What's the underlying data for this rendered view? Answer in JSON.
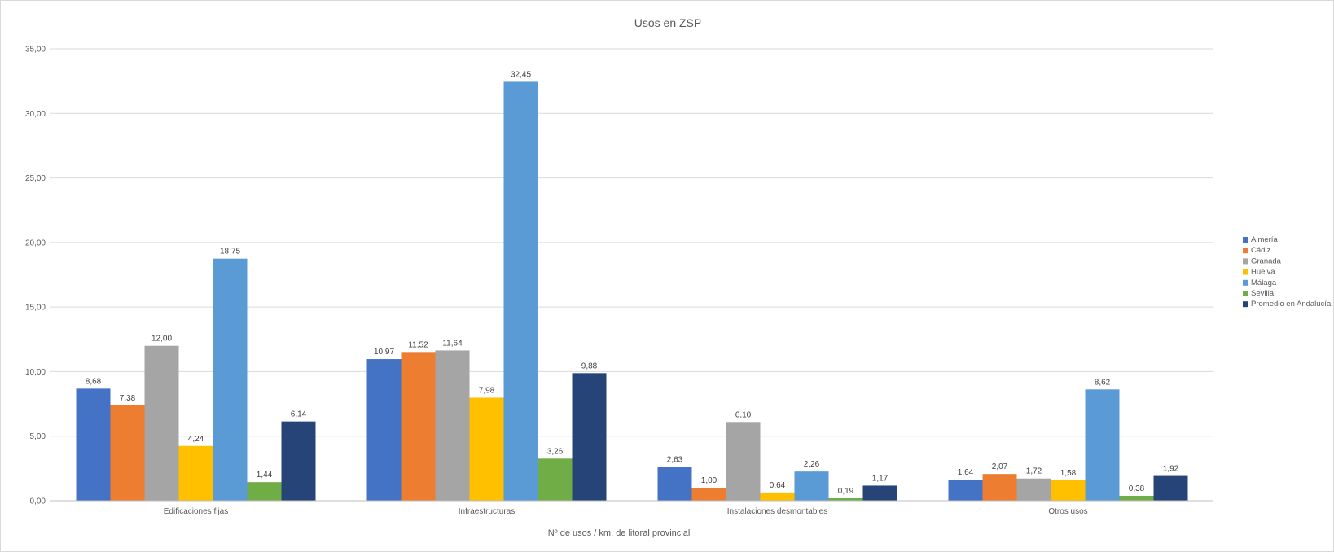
{
  "chart_data": {
    "type": "bar",
    "title": "Usos en ZSP",
    "xlabel": "Nº de usos / km. de litoral provincial",
    "ylabel": "",
    "ylim": [
      0,
      35
    ],
    "ytick_step": 5,
    "grid": true,
    "legend_position": "right",
    "categories": [
      "Edificaciones fijas",
      "Infraestructuras",
      "Instalaciones desmontables",
      "Otros usos"
    ],
    "series": [
      {
        "name": "Almería",
        "color": "#4472C4",
        "values": [
          8.68,
          10.97,
          2.63,
          1.64
        ]
      },
      {
        "name": "Cádiz",
        "color": "#ED7D31",
        "values": [
          7.38,
          11.52,
          1.0,
          2.07
        ]
      },
      {
        "name": "Granada",
        "color": "#A5A5A5",
        "values": [
          12.0,
          11.64,
          6.1,
          1.72
        ]
      },
      {
        "name": "Huelva",
        "color": "#FFC000",
        "values": [
          4.24,
          7.98,
          0.64,
          1.58
        ]
      },
      {
        "name": "Málaga",
        "color": "#5B9BD5",
        "values": [
          18.75,
          32.45,
          2.26,
          8.62
        ]
      },
      {
        "name": "Sevilla",
        "color": "#70AD47",
        "values": [
          1.44,
          3.26,
          0.19,
          0.38
        ]
      },
      {
        "name": "Promedio en Andalucía",
        "color": "#264478",
        "values": [
          6.14,
          9.88,
          1.17,
          1.92
        ]
      }
    ]
  }
}
